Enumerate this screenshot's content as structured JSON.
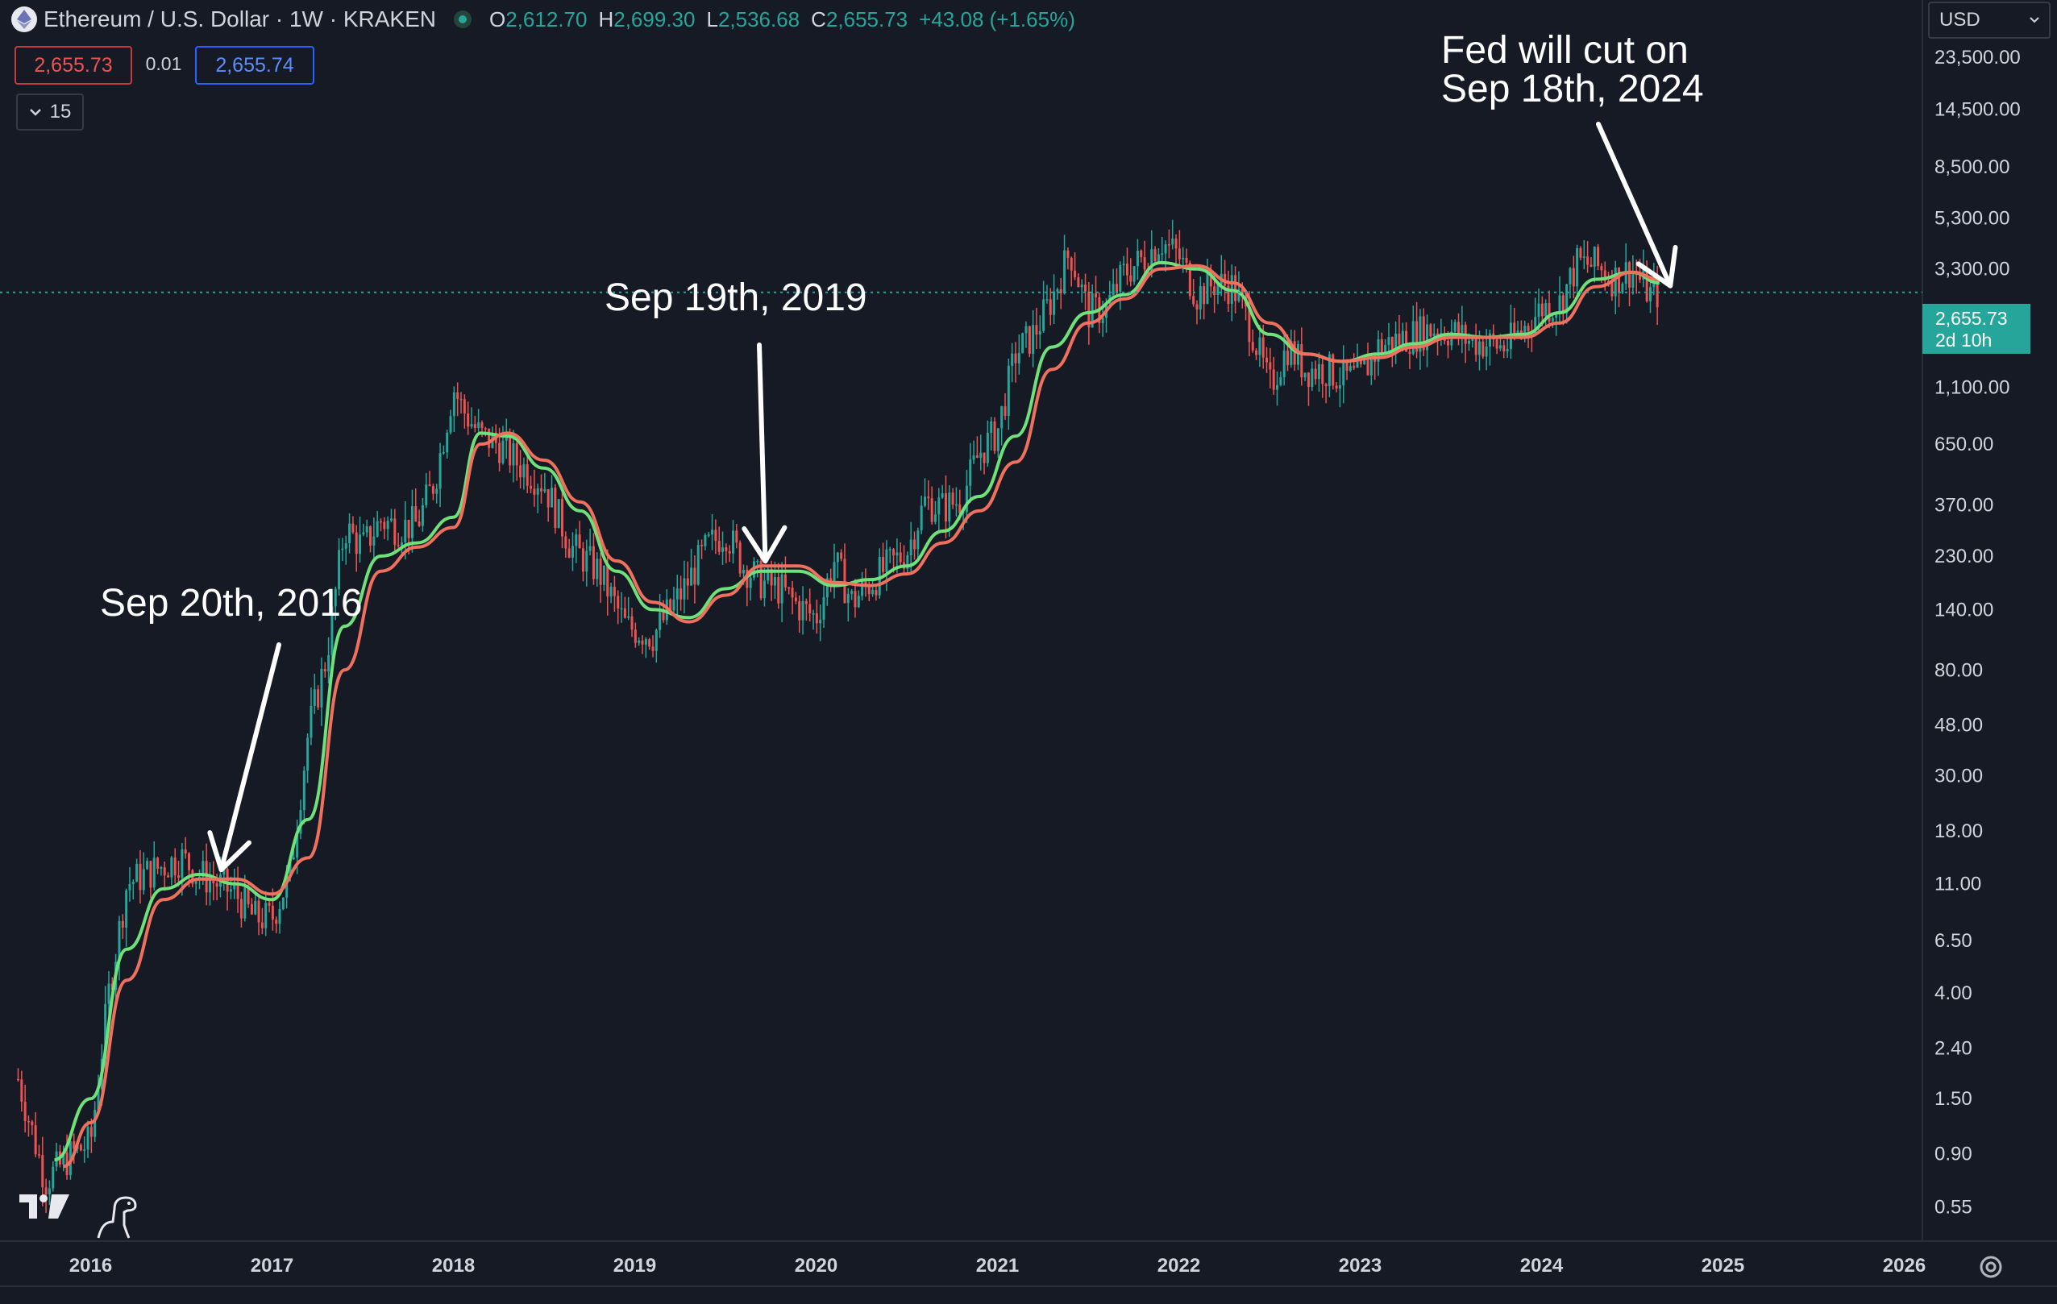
{
  "header": {
    "title": "Ethereum / U.S. Dollar · 1W · KRAKEN",
    "ohlc": [
      {
        "label": "O",
        "value": "2,612.70"
      },
      {
        "label": "H",
        "value": "2,699.30"
      },
      {
        "label": "L",
        "value": "2,536.68"
      },
      {
        "label": "C",
        "value": "2,655.73"
      }
    ],
    "change": "+43.08 (+1.65%)",
    "sell_price": "2,655.73",
    "spread": "0.01",
    "buy_price": "2,655.74",
    "indicators_count": "15"
  },
  "currency": "USD",
  "colors": {
    "background": "#161a25",
    "up": "#26a69a",
    "down": "#ef5350",
    "fast_ma": "#6fe07a",
    "slow_ma": "#f0705e"
  },
  "last_price_label": {
    "price": "2,655.73",
    "countdown": "2d 10h"
  },
  "chart_data": {
    "type": "line",
    "title": "Ethereum / U.S. Dollar · 1W · KRAKEN",
    "y_scale": "log",
    "ylim": [
      0.4,
      40000
    ],
    "x_range": [
      2015.5,
      2026.1
    ],
    "x_ticks": [
      "2016",
      "2017",
      "2018",
      "2019",
      "2020",
      "2021",
      "2022",
      "2023",
      "2024",
      "2025",
      "2026"
    ],
    "y_ticks": [
      "23,500.00",
      "14,500.00",
      "8,500.00",
      "5,300.00",
      "3,300.00",
      "1,100.00",
      "650.00",
      "370.00",
      "230.00",
      "140.00",
      "80.00",
      "48.00",
      "30.00",
      "18.00",
      "11.00",
      "6.50",
      "4.00",
      "2.40",
      "1.50",
      "0.90",
      "0.55"
    ],
    "series": [
      {
        "name": "",
        "kind": "price",
        "x": [
          2015.6,
          2015.75,
          2015.9,
          2016.0,
          2016.1,
          2016.2,
          2016.3,
          2016.4,
          2016.5,
          2016.6,
          2016.7,
          2016.8,
          2016.9,
          2017.0,
          2017.1,
          2017.2,
          2017.3,
          2017.4,
          2017.5,
          2017.6,
          2017.7,
          2017.8,
          2017.9,
          2018.0,
          2018.05,
          2018.15,
          2018.25,
          2018.35,
          2018.5,
          2018.65,
          2018.8,
          2018.95,
          2019.1,
          2019.25,
          2019.4,
          2019.5,
          2019.6,
          2019.7,
          2019.8,
          2019.9,
          2020.0,
          2020.1,
          2020.2,
          2020.3,
          2020.4,
          2020.5,
          2020.6,
          2020.7,
          2020.8,
          2020.9,
          2021.0,
          2021.1,
          2021.2,
          2021.3,
          2021.4,
          2021.5,
          2021.6,
          2021.7,
          2021.8,
          2021.9,
          2022.0,
          2022.1,
          2022.2,
          2022.3,
          2022.4,
          2022.5,
          2022.6,
          2022.7,
          2022.8,
          2022.9,
          2023.0,
          2023.1,
          2023.2,
          2023.3,
          2023.4,
          2023.5,
          2023.6,
          2023.7,
          2023.8,
          2023.9,
          2024.0,
          2024.1,
          2024.2,
          2024.3,
          2024.4,
          2024.5,
          2024.6,
          2024.65
        ],
        "y": [
          1.8,
          0.7,
          0.9,
          1.0,
          4.0,
          11.0,
          12.0,
          13.0,
          14.0,
          12.0,
          11.0,
          10.0,
          8.0,
          8.0,
          12.0,
          45.0,
          90.0,
          300.0,
          250.0,
          320.0,
          300.0,
          310.0,
          470.0,
          1100.0,
          900.0,
          700.0,
          650.0,
          550.0,
          450.0,
          250.0,
          200.0,
          120.0,
          110.0,
          160.0,
          250.0,
          290.0,
          210.0,
          180.0,
          170.0,
          145.0,
          130.0,
          220.0,
          150.0,
          180.0,
          210.0,
          240.0,
          380.0,
          360.0,
          390.0,
          600.0,
          730.0,
          1500.0,
          1800.0,
          2500.0,
          3900.0,
          2200.0,
          2300.0,
          3200.0,
          3600.0,
          4300.0,
          3700.0,
          2600.0,
          2900.0,
          2800.0,
          1900.0,
          1100.0,
          1600.0,
          1300.0,
          1300.0,
          1200.0,
          1200.0,
          1600.0,
          1700.0,
          1800.0,
          1900.0,
          1850.0,
          1700.0,
          1650.0,
          1600.0,
          1900.0,
          2300.0,
          2400.0,
          3500.0,
          3400.0,
          3000.0,
          3300.0,
          2600.0,
          2655.73
        ]
      },
      {
        "name": "",
        "kind": "fast_ma",
        "x": [
          2015.8,
          2016.0,
          2016.2,
          2016.4,
          2016.6,
          2016.8,
          2017.0,
          2017.2,
          2017.4,
          2017.6,
          2017.8,
          2018.0,
          2018.15,
          2018.3,
          2018.5,
          2018.7,
          2018.9,
          2019.1,
          2019.3,
          2019.5,
          2019.7,
          2019.9,
          2020.1,
          2020.3,
          2020.5,
          2020.7,
          2020.9,
          2021.1,
          2021.3,
          2021.5,
          2021.7,
          2021.9,
          2022.1,
          2022.3,
          2022.5,
          2022.7,
          2022.9,
          2023.1,
          2023.3,
          2023.5,
          2023.7,
          2023.9,
          2024.1,
          2024.3,
          2024.5,
          2024.65
        ],
        "y": [
          0.85,
          1.5,
          6.0,
          10.5,
          12.0,
          11.0,
          9.5,
          20.0,
          120.0,
          230.0,
          260.0,
          330.0,
          720.0,
          700.0,
          520.0,
          350.0,
          200.0,
          140.0,
          130.0,
          170.0,
          200.0,
          200.0,
          175.0,
          185.0,
          210.0,
          290.0,
          400.0,
          700.0,
          1600.0,
          2200.0,
          2600.0,
          3500.0,
          3300.0,
          2700.0,
          1800.0,
          1500.0,
          1400.0,
          1500.0,
          1650.0,
          1800.0,
          1750.0,
          1800.0,
          2200.0,
          3000.0,
          3200.0,
          2900.0
        ]
      },
      {
        "name": "",
        "kind": "slow_ma",
        "x": [
          2015.85,
          2016.0,
          2016.2,
          2016.4,
          2016.6,
          2016.8,
          2017.0,
          2017.2,
          2017.4,
          2017.6,
          2017.8,
          2018.0,
          2018.15,
          2018.3,
          2018.5,
          2018.7,
          2018.9,
          2019.1,
          2019.3,
          2019.5,
          2019.7,
          2019.9,
          2020.1,
          2020.3,
          2020.5,
          2020.7,
          2020.9,
          2021.1,
          2021.3,
          2021.5,
          2021.7,
          2021.9,
          2022.1,
          2022.3,
          2022.5,
          2022.7,
          2022.9,
          2023.1,
          2023.3,
          2023.5,
          2023.7,
          2023.9,
          2024.1,
          2024.3,
          2024.5,
          2024.65
        ],
        "y": [
          0.8,
          1.2,
          4.5,
          9.5,
          11.5,
          11.5,
          10.0,
          14.0,
          80.0,
          200.0,
          250.0,
          300.0,
          650.0,
          720.0,
          560.0,
          380.0,
          220.0,
          150.0,
          125.0,
          160.0,
          210.0,
          210.0,
          180.0,
          175.0,
          195.0,
          260.0,
          350.0,
          550.0,
          1300.0,
          2000.0,
          2500.0,
          3300.0,
          3400.0,
          2900.0,
          2000.0,
          1500.0,
          1400.0,
          1450.0,
          1600.0,
          1750.0,
          1750.0,
          1750.0,
          2000.0,
          2800.0,
          3200.0,
          3000.0
        ]
      }
    ],
    "annotations": [
      {
        "text": "Sep 20th, 2016",
        "x": 2016.72,
        "y": 12.0
      },
      {
        "text": "Sep 19th, 2019",
        "x": 2019.72,
        "y": 210.0
      },
      {
        "text": "Fed will cut on\nSep 18th, 2024",
        "x": 2024.71,
        "y": 2700.0
      }
    ],
    "last_value_line": 2655.73
  }
}
